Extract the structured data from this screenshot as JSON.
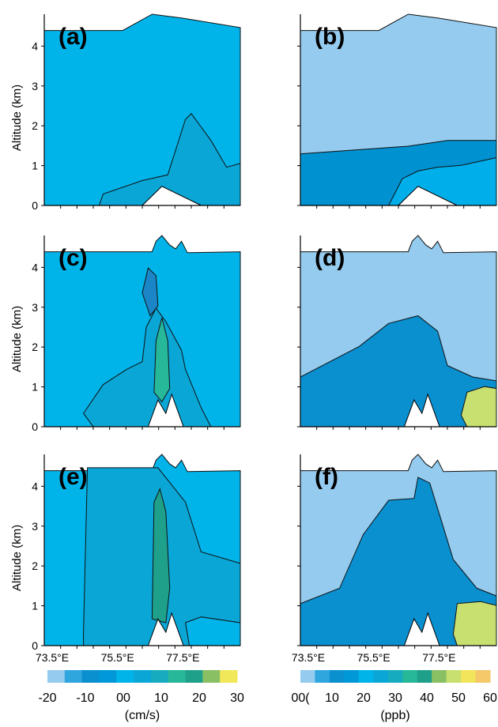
{
  "chart_data": [
    {
      "type": "contour",
      "panel_label": "(a)",
      "ylabel": "Altitude (km)",
      "yticks": [
        "0",
        "1",
        "2",
        "3",
        "4"
      ],
      "ylim": [
        0,
        4.8
      ],
      "xlim": [
        73.5,
        79.5
      ],
      "colorbar": "cm/s",
      "regions": [
        {
          "level": "10 to 15",
          "color": "#0aa6d6",
          "desc": "plume rising to ~2.25 km near 77.5E"
        },
        {
          "level": "5 to 10",
          "color": "#00b4ea",
          "desc": "background"
        }
      ]
    },
    {
      "type": "contour",
      "panel_label": "(b)",
      "ylabel": "",
      "yticks": [],
      "ylim": [
        0,
        4.8
      ],
      "xlim": [
        73.5,
        79.5
      ],
      "colorbar": "ppb",
      "regions": [
        {
          "level": "0 to 5",
          "color": "#94cbee",
          "desc": "upper background"
        },
        {
          "level": "15 to 20",
          "color": "#0091d0",
          "desc": "boundary layer west"
        },
        {
          "level": "20 to 25",
          "color": "#00aeea",
          "desc": "boundary layer east"
        }
      ]
    },
    {
      "type": "contour",
      "panel_label": "(c)",
      "ylabel": "Altitude (km)",
      "yticks": [
        "0",
        "1",
        "2",
        "3",
        "4"
      ],
      "ylim": [
        0,
        4.8
      ],
      "xlim": [
        73.5,
        79.5
      ],
      "colorbar": "cm/s",
      "regions": [
        {
          "level": "5 to 10",
          "color": "#00b4ea",
          "desc": "background"
        },
        {
          "level": "10 to 15",
          "color": "#0aa6d6",
          "desc": "updraft region"
        },
        {
          "level": "-10 to -5",
          "color": "#1a86c8",
          "desc": "downdraft near 76.5E, 3-3.5 km"
        },
        {
          "level": "20 to 25",
          "color": "#27b89a",
          "desc": "updraft core near 76.8E"
        }
      ]
    },
    {
      "type": "contour",
      "panel_label": "(d)",
      "ylabel": "",
      "yticks": [],
      "ylim": [
        0,
        4.8
      ],
      "xlim": [
        73.5,
        79.5
      ],
      "colorbar": "ppb",
      "regions": [
        {
          "level": "0 to 5",
          "color": "#94cbee",
          "desc": "background"
        },
        {
          "level": "10 to 20",
          "color": "#0a8fcf",
          "desc": "dome peaking ~2.7 km"
        },
        {
          "level": "40 to 50",
          "color": "#c8e070",
          "desc": "maximum near surface, 79E"
        }
      ]
    },
    {
      "type": "contour",
      "panel_label": "(e)",
      "ylabel": "Altitude (km)",
      "yticks": [
        "0",
        "1",
        "2",
        "3",
        "4"
      ],
      "ylim": [
        0,
        4.8
      ],
      "xlim": [
        73.5,
        79.5
      ],
      "xticks": [
        "73.5°E",
        "75.5°E",
        "77.5°E"
      ],
      "colorbar": "cm/s",
      "regions": [
        {
          "level": "5 to 10",
          "color": "#00b4ea",
          "desc": "background"
        },
        {
          "level": "10 to 15",
          "color": "#0aa6d6",
          "desc": "broad ascent region"
        },
        {
          "level": "20 to 30",
          "color": "#1fa08a",
          "desc": "narrow convective cores near 76.8E"
        }
      ]
    },
    {
      "type": "contour",
      "panel_label": "(f)",
      "ylabel": "",
      "yticks": [],
      "ylim": [
        0,
        4.8
      ],
      "xlim": [
        73.5,
        79.5
      ],
      "xticks": [
        "73.5°E",
        "75.5°E",
        "77.5°E"
      ],
      "colorbar": "ppb",
      "regions": [
        {
          "level": "0 to 5",
          "color": "#94cbee",
          "desc": "background"
        },
        {
          "level": "10 to 25",
          "color": "#0a8fcf",
          "desc": "tower peaking ~3.7 km"
        },
        {
          "level": "40 to 50",
          "color": "#c8e070",
          "desc": "maximum near surface, 79E"
        }
      ]
    }
  ],
  "colorbars": [
    {
      "id": "velocity",
      "colors": [
        "#94cbee",
        "#2fa6de",
        "#0a8fcf",
        "#0098d8",
        "#00b4ea",
        "#0aa6d6",
        "#17abc0",
        "#27b89a",
        "#1fa08a",
        "#8ac064",
        "#f0e858"
      ],
      "labels": [
        "-20",
        "-10",
        "00",
        "10",
        "20",
        "30"
      ],
      "unit": "(cm/s)"
    },
    {
      "id": "concentration",
      "colors": [
        "#94cbee",
        "#2fa6de",
        "#0a8fcf",
        "#0098d8",
        "#00b4ea",
        "#0aa6d6",
        "#17abc0",
        "#27b89a",
        "#1fa08a",
        "#8ac064",
        "#c8e070",
        "#f2e55c",
        "#f5c86a"
      ],
      "labels": [
        "00(",
        "10",
        "20",
        "30",
        "40",
        "50",
        "60"
      ],
      "unit": "(ppb)"
    }
  ]
}
